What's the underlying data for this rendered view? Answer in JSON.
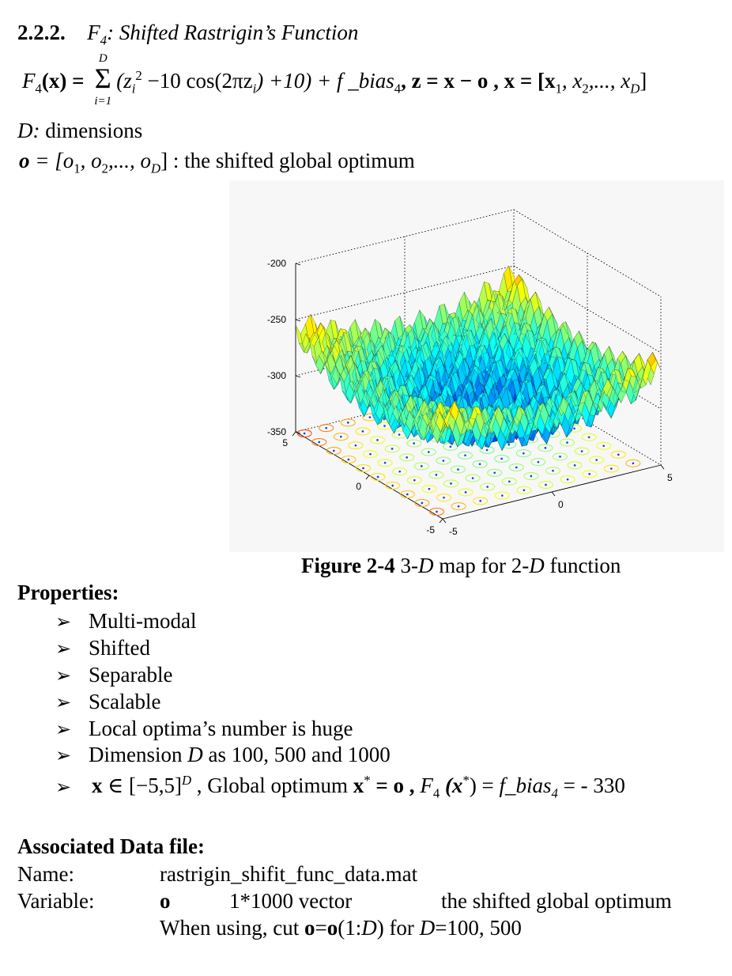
{
  "section": {
    "number": "2.2.2.",
    "title_prefix": "F",
    "title_sub": "4",
    "title_rest": ": Shifted Rastrigin’s Function"
  },
  "formula": {
    "lhs": "F",
    "lhs_sub": "4",
    "lhs_arg": "(x) =",
    "sum_upper": "D",
    "sum_lower": "i=1",
    "body": "(z",
    "body_sub": "i",
    "body_sup": "2",
    "body_rest": " −10 cos(2πz",
    "body_sub2": "i",
    "body_end": ") +10) + f _bias",
    "bias_sub": "4",
    "z_def": ",  z = x − o ,  x = [x",
    "x1_sub": "1",
    "x_mid": ", x",
    "x2_sub": "2",
    "x_dots": ",..., x",
    "xD_sub": "D",
    "x_close": "]"
  },
  "dimensions_line": {
    "label": "D:",
    "text": " dimensions"
  },
  "optimum_line": {
    "var": "o",
    "eq": " = [o",
    "s1": "1",
    "m1": ", o",
    "s2": "2",
    "m2": ",..., o",
    "sD": "D",
    "close": "]",
    "text": " : the shifted global optimum"
  },
  "figure": {
    "caption_bold": "Figure 2-4",
    "caption_text": " 3-D map for 2-D function",
    "z_ticks": [
      "-200",
      "-250",
      "-300",
      "-350"
    ],
    "x_ticks": [
      "5",
      "0",
      "-5"
    ],
    "y_ticks": [
      "-5",
      "0",
      "5"
    ]
  },
  "chart_data": {
    "type": "surface",
    "title": "",
    "description_of_function": "F4 shifted Rastrigin, 2-D, with contour map on floor",
    "x_range": [
      -5,
      5
    ],
    "y_range": [
      -5,
      5
    ],
    "z_range": [
      -350,
      -200
    ],
    "z_ticks": [
      -200,
      -250,
      -300,
      -350
    ],
    "x_ticks": [
      -5,
      0,
      5
    ],
    "y_ticks": [
      -5,
      0,
      5
    ],
    "grid": true,
    "colormap": "jet"
  },
  "properties": {
    "heading": "Properties:",
    "items": [
      "Multi-modal",
      "Shifted",
      "Separable",
      "Scalable",
      "Local optima’s number is huge"
    ],
    "dimension_item": {
      "pre": "Dimension ",
      "var": "D",
      "post": " as 100, 500 and 1000"
    },
    "range_item": {
      "x": "x",
      "in": " ∈ [−5,5]",
      "sup": "D",
      "text1": " , Global optimum ",
      "xstar": "x",
      "star": "*",
      "eq": " = o ,  ",
      "F": "F",
      "Fsub": "4",
      "arg": " (x",
      "argstar": "*",
      "argclose": ") = ",
      "fbias": "f_bias",
      "fbias_sub": "4",
      "val": " = - 330"
    }
  },
  "data_file": {
    "heading": "Associated Data file:",
    "name_label": "Name:",
    "name_value": "rastrigin_shifit_func_data.mat",
    "variable_label": "Variable:",
    "variable_name": "o",
    "variable_size": "1*1000 vector",
    "variable_desc": "the shifted global optimum",
    "usage_pre": "When using, cut ",
    "usage_o1": "o",
    "usage_eq": "=",
    "usage_o2": "o",
    "usage_arg_pre": "(1:",
    "usage_D": "D",
    "usage_arg_post": ") for ",
    "usage_D2": "D",
    "usage_end": "=100, 500"
  },
  "colors": {
    "text": "#000000",
    "grid": "#000000"
  }
}
